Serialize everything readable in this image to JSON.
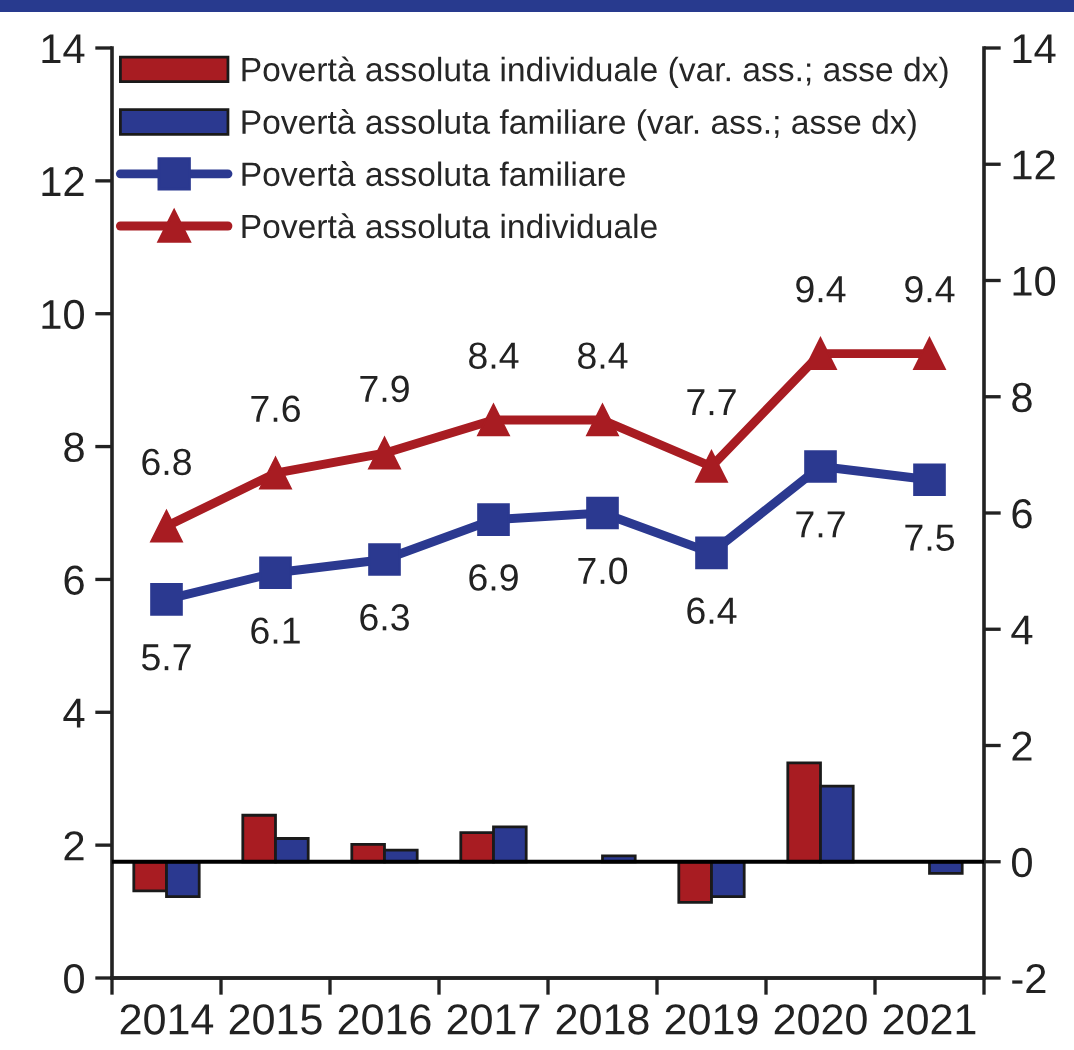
{
  "chart_data": {
    "type": "bar",
    "categories": [
      "2014",
      "2015",
      "2016",
      "2017",
      "2018",
      "2019",
      "2020",
      "2021"
    ],
    "series": [
      {
        "name": "Povertà assoluta individuale (var. ass.; asse dx)",
        "axis": "y2",
        "color": "#a81c22",
        "values": [
          -0.5,
          0.8,
          0.3,
          0.5,
          null,
          -0.7,
          1.7,
          null
        ]
      },
      {
        "name": "Povertà assoluta familiare (var. ass.; asse dx)",
        "axis": "y2",
        "color": "#2b3990",
        "values": [
          -0.6,
          0.4,
          0.2,
          0.6,
          0.1,
          -0.6,
          1.3,
          -0.2
        ]
      },
      {
        "name": "Povertà assoluta familiare",
        "type": "line",
        "color": "#2b3990",
        "marker": "square",
        "values": [
          5.7,
          6.1,
          6.3,
          6.9,
          7.0,
          6.4,
          7.7,
          7.5
        ],
        "value_labels": [
          "5.7",
          "6.1",
          "6.3",
          "6.9",
          "7.0",
          "6.4",
          "7.7",
          "7.5"
        ]
      },
      {
        "name": "Povertà assoluta individuale",
        "type": "line",
        "color": "#a81c22",
        "marker": "triangle",
        "values": [
          6.8,
          7.6,
          7.9,
          8.4,
          8.4,
          7.7,
          9.4,
          9.4
        ],
        "value_labels": [
          "6.8",
          "7.6",
          "7.9",
          "8.4",
          "8.4",
          "7.7",
          "9.4",
          "9.4"
        ]
      }
    ],
    "ylim": [
      0,
      14
    ],
    "yticks": [
      0,
      2,
      4,
      6,
      8,
      10,
      12,
      14
    ],
    "y2lim": [
      -2,
      14
    ],
    "y2ticks": [
      -2,
      0,
      2,
      4,
      6,
      8,
      10,
      12,
      14
    ],
    "ref_lines": [
      {
        "axis": "y2",
        "value": 0,
        "color": "#000000"
      }
    ],
    "legend": "top left",
    "line_style": "solid"
  }
}
